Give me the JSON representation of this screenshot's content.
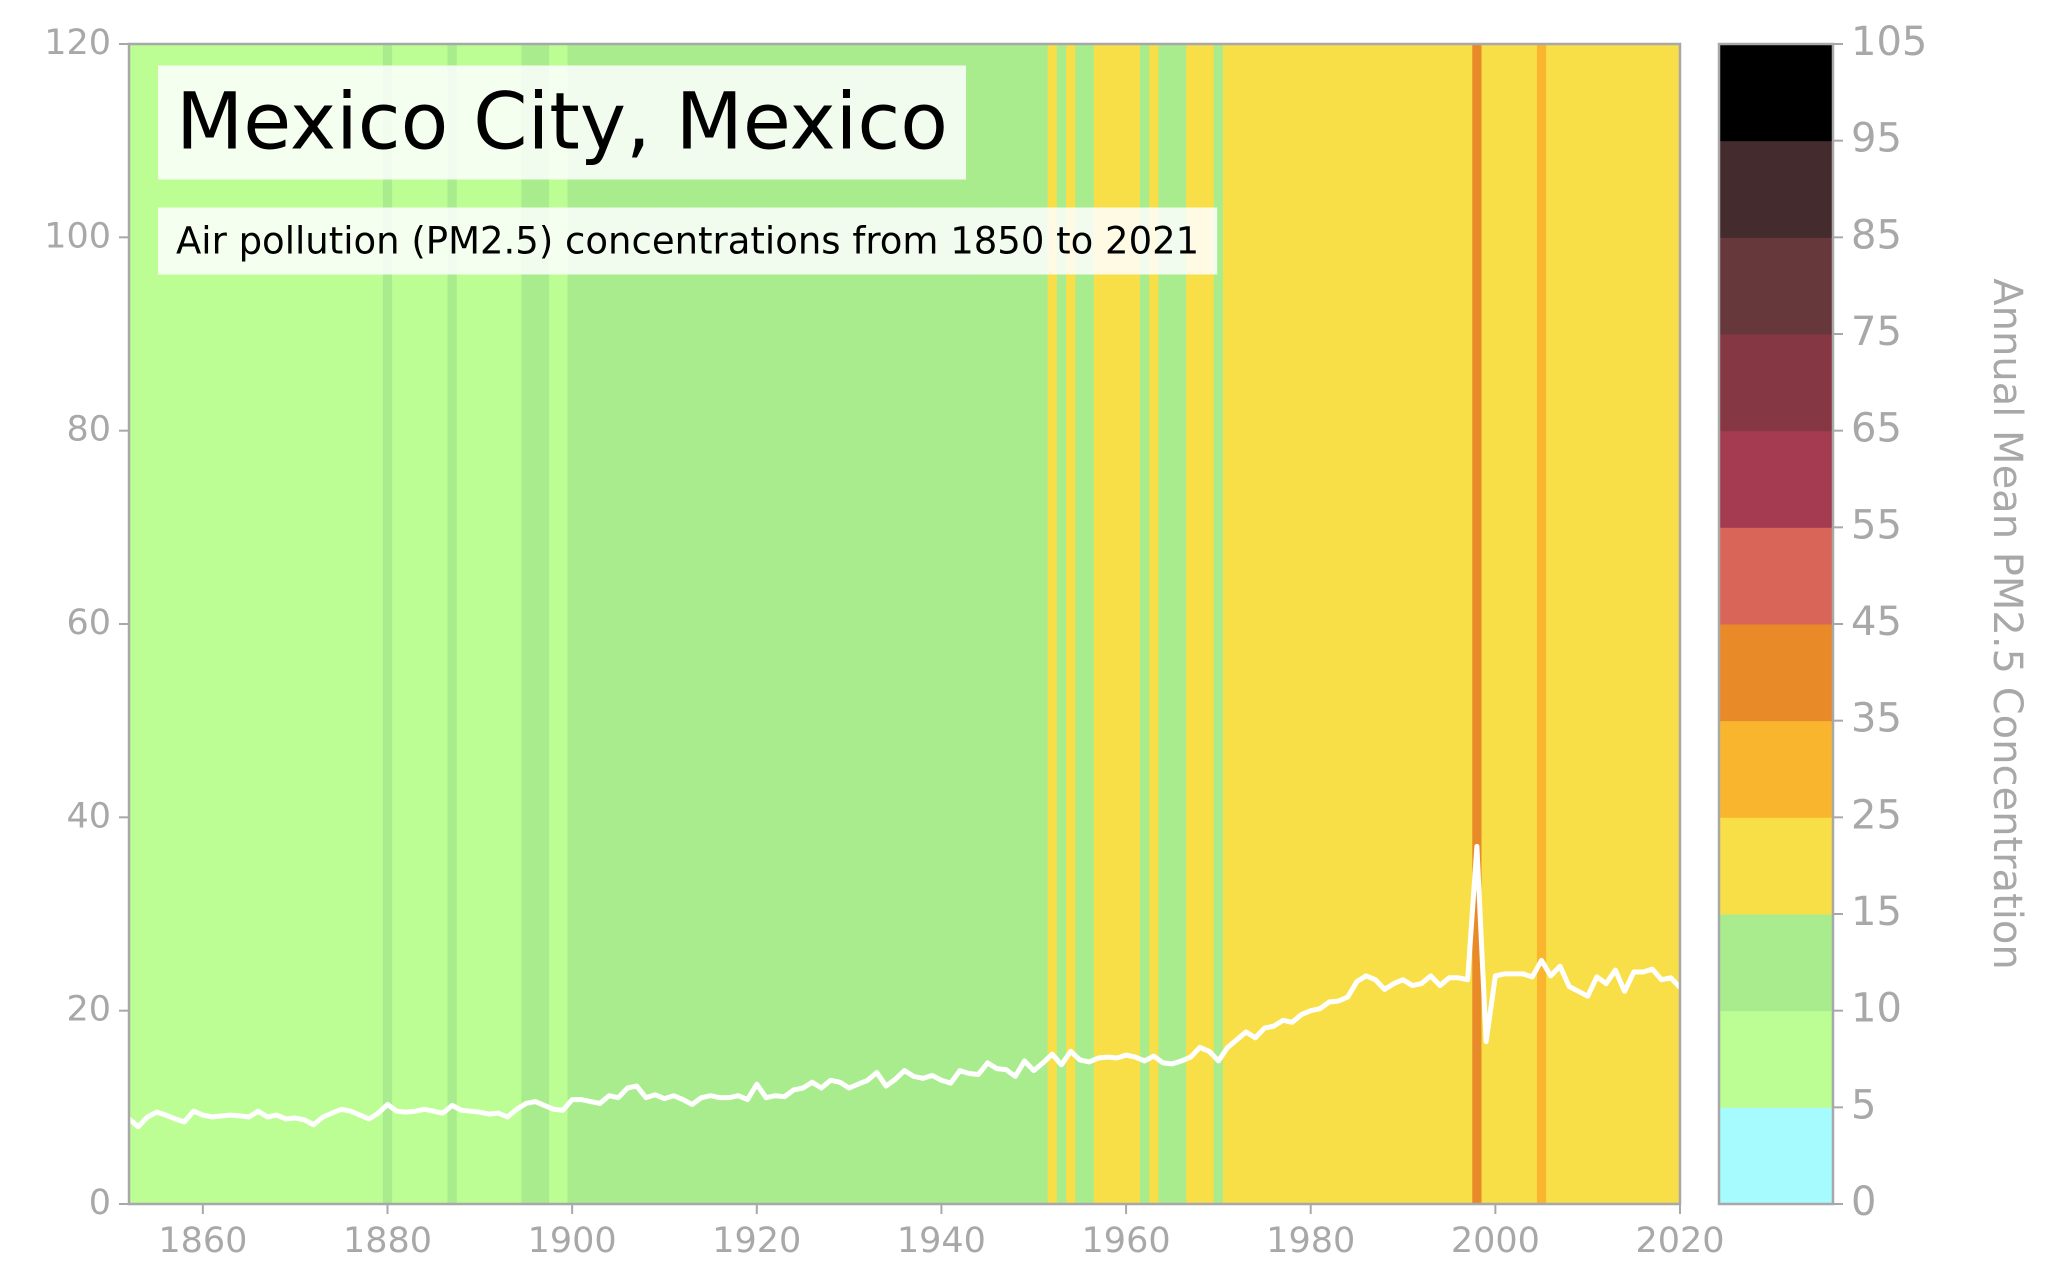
{
  "chart_data": {
    "type": "stripes-line",
    "title": "Mexico City, Mexico",
    "subtitle": "Air pollution (PM2.5) concentrations from 1850 to 2021",
    "x": [
      1852,
      1853,
      1854,
      1855,
      1856,
      1857,
      1858,
      1859,
      1860,
      1861,
      1862,
      1863,
      1864,
      1865,
      1866,
      1867,
      1868,
      1869,
      1870,
      1871,
      1872,
      1873,
      1874,
      1875,
      1876,
      1877,
      1878,
      1879,
      1880,
      1881,
      1882,
      1883,
      1884,
      1885,
      1886,
      1887,
      1888,
      1889,
      1890,
      1891,
      1892,
      1893,
      1894,
      1895,
      1896,
      1897,
      1898,
      1899,
      1900,
      1901,
      1902,
      1903,
      1904,
      1905,
      1906,
      1907,
      1908,
      1909,
      1910,
      1911,
      1912,
      1913,
      1914,
      1915,
      1916,
      1917,
      1918,
      1919,
      1920,
      1921,
      1922,
      1923,
      1924,
      1925,
      1926,
      1927,
      1928,
      1929,
      1930,
      1931,
      1932,
      1933,
      1934,
      1935,
      1936,
      1937,
      1938,
      1939,
      1940,
      1941,
      1942,
      1943,
      1944,
      1945,
      1946,
      1947,
      1948,
      1949,
      1950,
      1951,
      1952,
      1953,
      1954,
      1955,
      1956,
      1957,
      1958,
      1959,
      1960,
      1961,
      1962,
      1963,
      1964,
      1965,
      1966,
      1967,
      1968,
      1969,
      1970,
      1971,
      1972,
      1973,
      1974,
      1975,
      1976,
      1977,
      1978,
      1979,
      1980,
      1981,
      1982,
      1983,
      1984,
      1985,
      1986,
      1987,
      1988,
      1989,
      1990,
      1991,
      1992,
      1993,
      1994,
      1995,
      1996,
      1997,
      1998,
      1999,
      2000,
      2001,
      2002,
      2003,
      2004,
      2005,
      2006,
      2007,
      2008,
      2009,
      2010,
      2011,
      2012,
      2013,
      2014,
      2015,
      2016,
      2017,
      2018,
      2019,
      2020
    ],
    "values": [
      8.8,
      8.0,
      9.0,
      9.5,
      9.2,
      8.8,
      8.5,
      9.6,
      9.2,
      9.0,
      9.1,
      9.2,
      9.1,
      9.0,
      9.6,
      9.0,
      9.2,
      8.8,
      8.9,
      8.7,
      8.2,
      9.0,
      9.4,
      9.8,
      9.6,
      9.2,
      8.8,
      9.4,
      10.3,
      9.6,
      9.5,
      9.6,
      9.8,
      9.6,
      9.4,
      10.2,
      9.7,
      9.6,
      9.5,
      9.3,
      9.4,
      9.0,
      9.8,
      10.4,
      10.6,
      10.2,
      9.8,
      9.7,
      10.8,
      10.8,
      10.6,
      10.4,
      11.2,
      11.0,
      12.0,
      12.2,
      11.0,
      11.3,
      10.9,
      11.2,
      10.8,
      10.3,
      11.0,
      11.2,
      11.0,
      11.0,
      11.2,
      10.8,
      12.4,
      11.0,
      11.2,
      11.1,
      11.8,
      12.0,
      12.6,
      12.0,
      12.8,
      12.6,
      12.0,
      12.4,
      12.8,
      13.6,
      12.2,
      12.9,
      13.8,
      13.2,
      13.0,
      13.3,
      12.8,
      12.5,
      13.8,
      13.5,
      13.4,
      14.6,
      14.0,
      13.9,
      13.2,
      14.8,
      13.8,
      14.6,
      15.5,
      14.4,
      15.8,
      14.9,
      14.7,
      15.1,
      15.2,
      15.1,
      15.4,
      15.2,
      14.8,
      15.3,
      14.6,
      14.5,
      14.8,
      15.2,
      16.2,
      15.8,
      14.8,
      16.2,
      17.0,
      17.8,
      17.2,
      18.2,
      18.4,
      19.0,
      18.8,
      19.6,
      20.0,
      20.2,
      20.9,
      21.0,
      21.4,
      23.0,
      23.6,
      23.2,
      22.2,
      22.8,
      23.2,
      22.6,
      22.8,
      23.6,
      22.6,
      23.4,
      23.4,
      23.2,
      37.0,
      16.8,
      23.6,
      23.8,
      23.8,
      23.8,
      23.5,
      25.2,
      23.6,
      24.6,
      22.5,
      22.0,
      21.5,
      23.5,
      22.8,
      24.2,
      22.0,
      24.0,
      24.0,
      24.3,
      23.2,
      23.4,
      22.4
    ],
    "line_color": "#ffffff",
    "xlim": [
      1852,
      2020
    ],
    "xticks": [
      1860,
      1880,
      1900,
      1920,
      1940,
      1960,
      1980,
      2000,
      2020
    ],
    "ylim": [
      0,
      120
    ],
    "yticks": [
      0,
      20,
      40,
      60,
      80,
      100,
      120
    ],
    "colorbar_label": "Annual Mean PM2.5 Concentration",
    "colorbar_bounds": [
      0,
      5,
      10,
      15,
      25,
      35,
      45,
      55,
      65,
      75,
      85,
      95,
      105
    ],
    "colorbar_colors": [
      "#a6fbff",
      "#bcfe94",
      "#a9ec8d",
      "#f8df48",
      "#fab52e",
      "#e88a27",
      "#d96559",
      "#a43b50",
      "#853744",
      "#66383b",
      "#442b2e",
      "#000000"
    ]
  }
}
